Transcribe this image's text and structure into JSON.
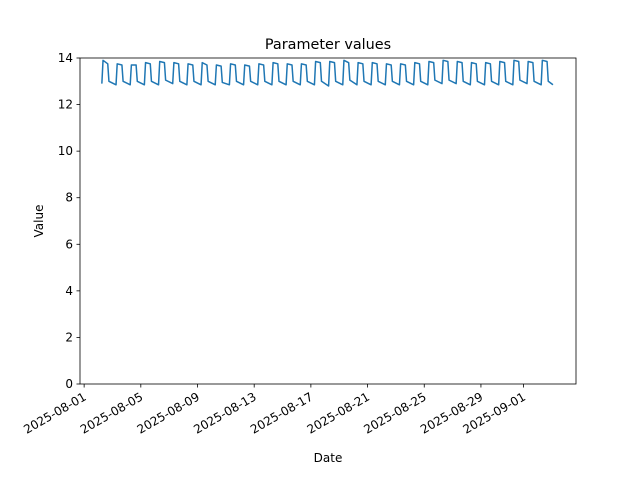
{
  "chart_data": {
    "type": "line",
    "title": "Parameter values",
    "x_label": "Date",
    "y_label": "Value",
    "x": [
      "2025-08-02T06:00",
      "2025-08-02T08:00",
      "2025-08-02T16:00",
      "2025-08-02T18:00",
      "2025-08-03T06:00",
      "2025-08-03T08:00",
      "2025-08-03T16:00",
      "2025-08-03T18:00",
      "2025-08-04T06:00",
      "2025-08-04T08:00",
      "2025-08-04T16:00",
      "2025-08-04T18:00",
      "2025-08-05T06:00",
      "2025-08-05T08:00",
      "2025-08-05T16:00",
      "2025-08-05T18:00",
      "2025-08-06T06:00",
      "2025-08-06T08:00",
      "2025-08-06T16:00",
      "2025-08-06T18:00",
      "2025-08-07T06:00",
      "2025-08-07T08:00",
      "2025-08-07T16:00",
      "2025-08-07T18:00",
      "2025-08-08T06:00",
      "2025-08-08T08:00",
      "2025-08-08T16:00",
      "2025-08-08T18:00",
      "2025-08-09T06:00",
      "2025-08-09T08:00",
      "2025-08-09T16:00",
      "2025-08-09T18:00",
      "2025-08-10T06:00",
      "2025-08-10T08:00",
      "2025-08-10T16:00",
      "2025-08-10T18:00",
      "2025-08-11T06:00",
      "2025-08-11T08:00",
      "2025-08-11T16:00",
      "2025-08-11T18:00",
      "2025-08-12T06:00",
      "2025-08-12T08:00",
      "2025-08-12T16:00",
      "2025-08-12T18:00",
      "2025-08-13T06:00",
      "2025-08-13T08:00",
      "2025-08-13T16:00",
      "2025-08-13T18:00",
      "2025-08-14T06:00",
      "2025-08-14T08:00",
      "2025-08-14T16:00",
      "2025-08-14T18:00",
      "2025-08-15T06:00",
      "2025-08-15T08:00",
      "2025-08-15T16:00",
      "2025-08-15T18:00",
      "2025-08-16T06:00",
      "2025-08-16T08:00",
      "2025-08-16T16:00",
      "2025-08-16T18:00",
      "2025-08-17T06:00",
      "2025-08-17T08:00",
      "2025-08-17T16:00",
      "2025-08-17T18:00",
      "2025-08-18T06:00",
      "2025-08-18T08:00",
      "2025-08-18T16:00",
      "2025-08-18T18:00",
      "2025-08-19T06:00",
      "2025-08-19T08:00",
      "2025-08-19T16:00",
      "2025-08-19T18:00",
      "2025-08-20T06:00",
      "2025-08-20T08:00",
      "2025-08-20T16:00",
      "2025-08-20T18:00",
      "2025-08-21T06:00",
      "2025-08-21T08:00",
      "2025-08-21T16:00",
      "2025-08-21T18:00",
      "2025-08-22T06:00",
      "2025-08-22T08:00",
      "2025-08-22T16:00",
      "2025-08-22T18:00",
      "2025-08-23T06:00",
      "2025-08-23T08:00",
      "2025-08-23T16:00",
      "2025-08-23T18:00",
      "2025-08-24T06:00",
      "2025-08-24T08:00",
      "2025-08-24T16:00",
      "2025-08-24T18:00",
      "2025-08-25T06:00",
      "2025-08-25T08:00",
      "2025-08-25T16:00",
      "2025-08-25T18:00",
      "2025-08-26T06:00",
      "2025-08-26T08:00",
      "2025-08-26T16:00",
      "2025-08-26T18:00",
      "2025-08-27T06:00",
      "2025-08-27T08:00",
      "2025-08-27T16:00",
      "2025-08-27T18:00",
      "2025-08-28T06:00",
      "2025-08-28T08:00",
      "2025-08-28T16:00",
      "2025-08-28T18:00",
      "2025-08-29T06:00",
      "2025-08-29T08:00",
      "2025-08-29T16:00",
      "2025-08-29T18:00",
      "2025-08-30T06:00",
      "2025-08-30T08:00",
      "2025-08-30T16:00",
      "2025-08-30T18:00",
      "2025-08-31T06:00",
      "2025-08-31T08:00",
      "2025-08-31T16:00",
      "2025-08-31T18:00",
      "2025-09-01T06:00",
      "2025-09-01T08:00",
      "2025-09-01T16:00",
      "2025-09-01T18:00",
      "2025-09-02T06:00",
      "2025-09-02T08:00",
      "2025-09-02T16:00",
      "2025-09-02T18:00",
      "2025-09-03T02:00"
    ],
    "series": [
      {
        "name": "Value",
        "color": "#1f77b4",
        "values": [
          12.9,
          13.9,
          13.75,
          13.0,
          12.85,
          13.75,
          13.7,
          13.0,
          12.85,
          13.7,
          13.7,
          13.0,
          12.85,
          13.8,
          13.75,
          13.0,
          12.85,
          13.85,
          13.8,
          13.05,
          12.9,
          13.8,
          13.75,
          13.0,
          12.85,
          13.75,
          13.7,
          13.0,
          12.85,
          13.8,
          13.7,
          13.0,
          12.85,
          13.7,
          13.65,
          12.95,
          12.85,
          13.75,
          13.7,
          13.0,
          12.85,
          13.7,
          13.65,
          13.0,
          12.85,
          13.75,
          13.7,
          13.0,
          12.85,
          13.8,
          13.75,
          13.0,
          12.85,
          13.75,
          13.7,
          13.0,
          12.85,
          13.75,
          13.7,
          13.0,
          12.85,
          13.85,
          13.8,
          13.0,
          12.8,
          13.85,
          13.8,
          13.0,
          12.85,
          13.9,
          13.8,
          13.05,
          12.85,
          13.8,
          13.75,
          13.0,
          12.85,
          13.8,
          13.75,
          13.0,
          12.85,
          13.75,
          13.7,
          13.0,
          12.85,
          13.75,
          13.7,
          13.0,
          12.85,
          13.8,
          13.75,
          13.0,
          12.85,
          13.85,
          13.8,
          13.05,
          12.9,
          13.9,
          13.85,
          13.05,
          12.9,
          13.85,
          13.8,
          13.0,
          12.85,
          13.8,
          13.75,
          13.0,
          12.85,
          13.8,
          13.75,
          13.0,
          12.85,
          13.85,
          13.8,
          13.0,
          12.85,
          13.9,
          13.85,
          13.05,
          12.9,
          13.85,
          13.8,
          13.0,
          12.85,
          13.9,
          13.85,
          13.0,
          12.85
        ]
      }
    ],
    "xlim": [
      "2025-07-31T17:00",
      "2025-09-04T17:00"
    ],
    "xticks": [
      "2025-08-01",
      "2025-08-05",
      "2025-08-09",
      "2025-08-13",
      "2025-08-17",
      "2025-08-21",
      "2025-08-25",
      "2025-08-29",
      "2025-09-01"
    ],
    "ylim": [
      0,
      14
    ],
    "yticks": [
      0,
      2,
      4,
      6,
      8,
      10,
      12,
      14
    ],
    "grid": false
  }
}
